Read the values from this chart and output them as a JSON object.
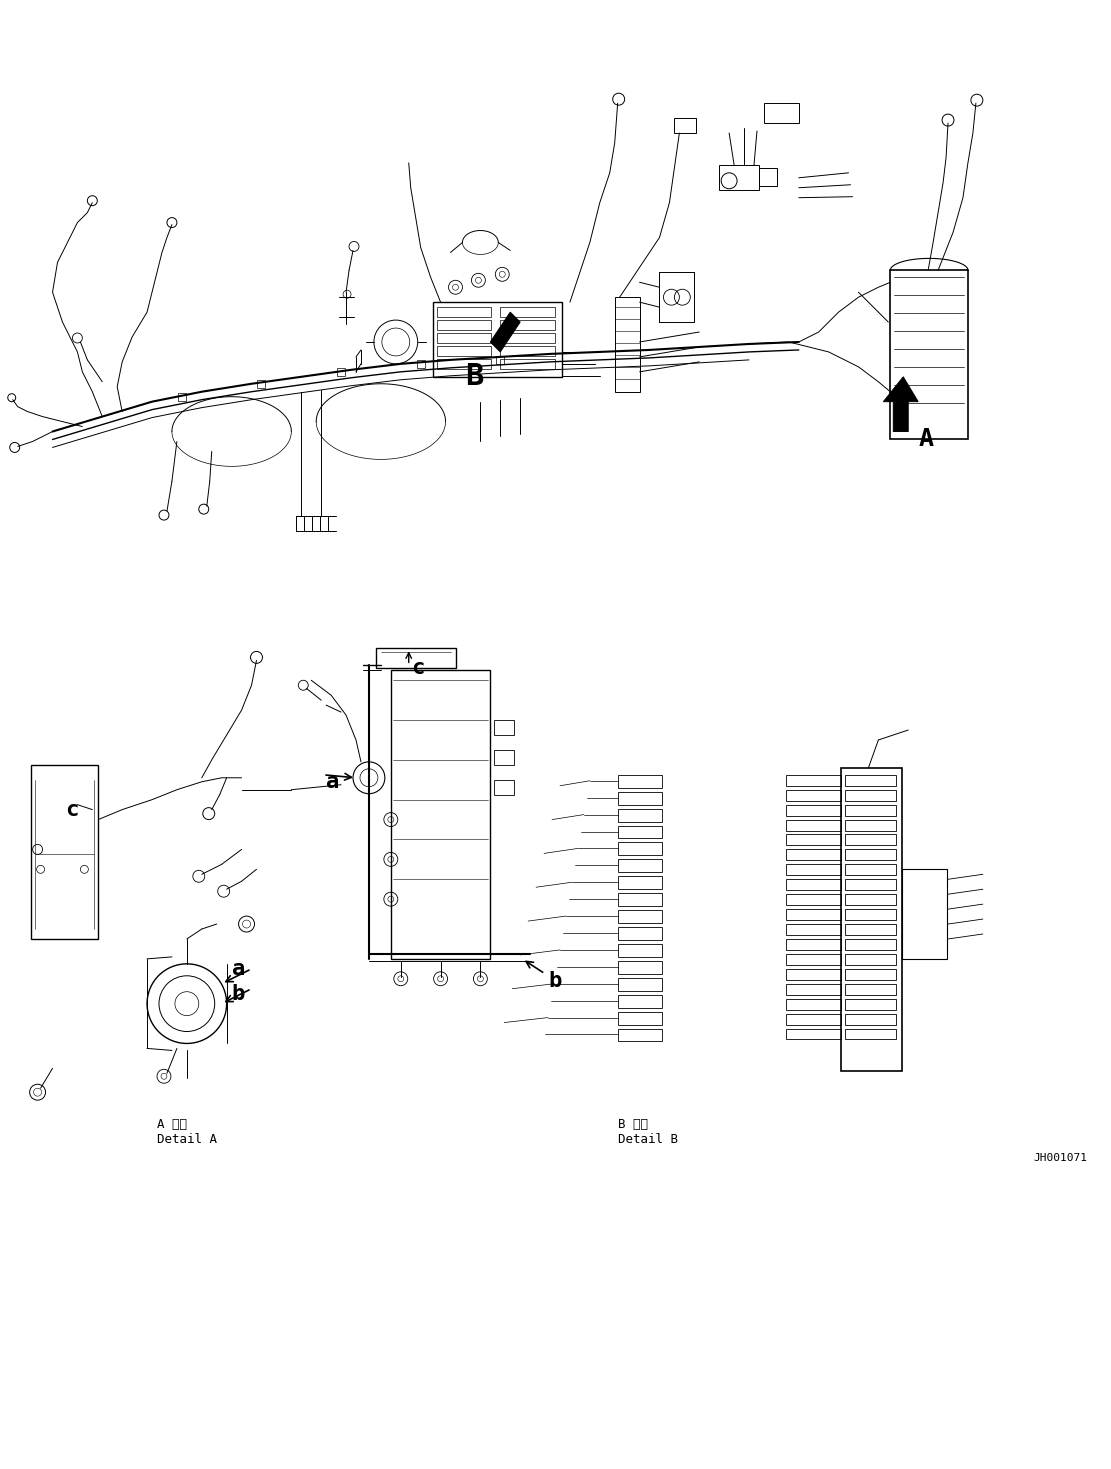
{
  "background_color": "#ffffff",
  "line_color": "#000000",
  "figure_width": 11.11,
  "figure_height": 14.69,
  "dpi": 100,
  "text_detail_a_ja": "A 詳細",
  "text_detail_a_en": "Detail A",
  "text_detail_b_ja": "B 詳細",
  "text_detail_b_en": "Detail B",
  "text_code": "JH001071"
}
